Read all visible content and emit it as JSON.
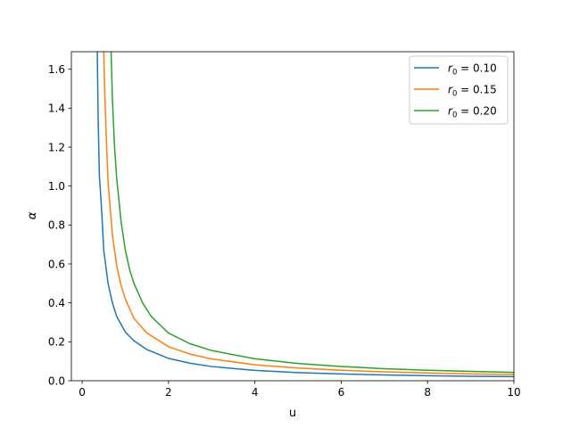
{
  "chart_data": {
    "type": "line",
    "title": "",
    "xlabel": "u",
    "ylabel": "α",
    "xlim": [
      -0.25,
      10
    ],
    "ylim": [
      0,
      1.69
    ],
    "xticks": [
      0,
      2,
      4,
      6,
      8,
      10
    ],
    "xtick_labels": [
      "0",
      "2",
      "4",
      "6",
      "8",
      "10"
    ],
    "yticks": [
      0.0,
      0.2,
      0.4,
      0.6,
      0.8,
      1.0,
      1.2,
      1.4,
      1.6
    ],
    "ytick_labels": [
      "0.0",
      "0.2",
      "0.4",
      "0.6",
      "0.8",
      "1.0",
      "1.2",
      "1.4",
      "1.6"
    ],
    "grid": false,
    "legend_position": "top-right",
    "series": [
      {
        "name": "r0 = 0.10",
        "legend_sym": "r",
        "legend_sub": "0",
        "legend_val": " = 0.10",
        "color": "#1f77b4",
        "x": [
          0.35,
          0.37,
          0.4,
          0.45,
          0.5,
          0.6,
          0.7,
          0.8,
          1.0,
          1.2,
          1.5,
          2.0,
          2.5,
          3.0,
          4.0,
          5.0,
          6.0,
          7.0,
          8.0,
          9.0,
          10.0
        ],
        "y": [
          1.69,
          1.35,
          1.05,
          0.88,
          0.67,
          0.5,
          0.4,
          0.33,
          0.25,
          0.205,
          0.16,
          0.115,
          0.09,
          0.073,
          0.053,
          0.042,
          0.035,
          0.03,
          0.026,
          0.023,
          0.021
        ]
      },
      {
        "name": "r0 = 0.15",
        "legend_sym": "r",
        "legend_sub": "0",
        "legend_val": " = 0.15",
        "color": "#ff7f0e",
        "x": [
          0.5,
          0.52,
          0.55,
          0.6,
          0.7,
          0.8,
          0.9,
          1.0,
          1.2,
          1.5,
          2.0,
          2.5,
          3.0,
          4.0,
          5.0,
          6.0,
          7.0,
          8.0,
          9.0,
          10.0
        ],
        "y": [
          1.69,
          1.5,
          1.3,
          1.02,
          0.75,
          0.59,
          0.49,
          0.42,
          0.32,
          0.245,
          0.175,
          0.137,
          0.112,
          0.082,
          0.065,
          0.054,
          0.046,
          0.04,
          0.035,
          0.032
        ]
      },
      {
        "name": "r0 = 0.20",
        "legend_sym": "r",
        "legend_sub": "0",
        "legend_val": " = 0.20",
        "color": "#2ca02c",
        "x": [
          0.67,
          0.7,
          0.75,
          0.8,
          0.9,
          1.0,
          1.1,
          1.2,
          1.4,
          1.6,
          2.0,
          2.5,
          3.0,
          4.0,
          5.0,
          6.0,
          7.0,
          8.0,
          9.0,
          10.0
        ],
        "y": [
          1.69,
          1.45,
          1.2,
          1.04,
          0.82,
          0.67,
          0.57,
          0.5,
          0.4,
          0.33,
          0.245,
          0.19,
          0.155,
          0.113,
          0.089,
          0.073,
          0.062,
          0.054,
          0.048,
          0.043
        ]
      }
    ]
  }
}
